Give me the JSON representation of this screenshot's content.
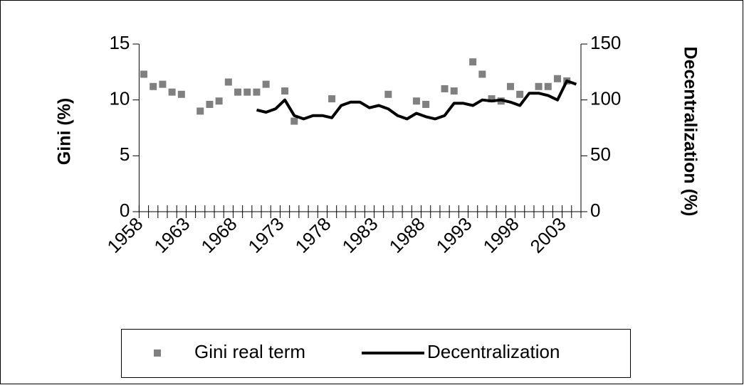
{
  "chart_data": {
    "type": "scatter-line",
    "ylabel": "Gini (%)",
    "y2label": "Decentralization (%)",
    "categories": [
      "1958",
      null,
      null,
      null,
      null,
      "1963",
      null,
      null,
      null,
      null,
      "1968",
      null,
      null,
      null,
      null,
      "1973",
      null,
      null,
      null,
      null,
      "1978",
      null,
      null,
      null,
      null,
      "1983",
      null,
      null,
      null,
      null,
      "1988",
      null,
      null,
      null,
      null,
      "1993",
      null,
      null,
      null,
      null,
      "1998",
      null,
      null,
      null,
      null,
      "2003",
      null
    ],
    "ylim": [
      0,
      15
    ],
    "yticks": [
      0,
      5,
      10,
      15
    ],
    "y2lim": [
      0,
      150
    ],
    "y2ticks": [
      0,
      50,
      100,
      150
    ],
    "series": [
      {
        "name": "Gini real term",
        "type": "scatter",
        "color": "#808080",
        "values": [
          12.3,
          11.2,
          11.4,
          10.7,
          10.5,
          null,
          9.0,
          9.6,
          9.9,
          11.6,
          10.7,
          10.7,
          10.7,
          11.4,
          null,
          10.8,
          8.1,
          null,
          null,
          null,
          10.1,
          null,
          null,
          null,
          null,
          null,
          10.5,
          null,
          null,
          9.9,
          9.6,
          null,
          11.0,
          10.8,
          null,
          13.4,
          12.3,
          10.1,
          9.9,
          11.2,
          10.5,
          null,
          11.2,
          11.2,
          11.9,
          11.7,
          null
        ]
      },
      {
        "name": "Decentralization",
        "type": "line",
        "axis": "y2",
        "color": "#000000",
        "values": [
          null,
          null,
          null,
          null,
          null,
          null,
          null,
          null,
          null,
          null,
          null,
          null,
          91,
          89,
          92,
          100,
          86,
          83,
          86,
          86,
          84,
          95,
          98,
          98,
          93,
          95,
          92,
          86,
          83,
          88,
          85,
          83,
          86,
          97,
          97,
          95,
          100,
          99,
          100,
          98,
          95,
          106,
          106,
          104,
          100,
          117,
          114
        ]
      }
    ],
    "legend": "bottom"
  }
}
